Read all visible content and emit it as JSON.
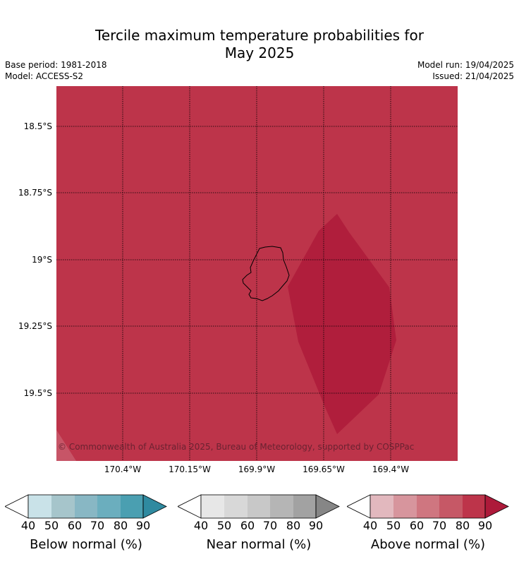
{
  "header": {
    "title_line1": "Tercile maximum temperature probabilities for",
    "title_line2": "May 2025",
    "base_period": "Base period: 1981-2018",
    "model": "Model: ACCESS-S2",
    "model_run": "Model run: 19/04/2025",
    "issued": "Issued: 21/04/2025"
  },
  "map": {
    "copyright": "© Commonwealth of Australia 2025, Bureau of Meteorology, supported by COSPPac",
    "lat_labels": [
      "18.5°S",
      "18.75°S",
      "19°S",
      "19.25°S",
      "19.5°S"
    ],
    "lon_labels": [
      "170.4°W",
      "170.15°W",
      "169.9°W",
      "169.65°W",
      "169.4°W"
    ],
    "fill_colors": {
      "above_80": "#bd344a",
      "above_90": "#b01e3c",
      "above_70": "#c75567"
    },
    "island_name": ""
  },
  "legends": [
    {
      "title": "Below normal (%)",
      "ticks": [
        "40",
        "50",
        "60",
        "70",
        "80",
        "90"
      ],
      "colors": [
        "#c9e2e8",
        "#a6c5cb",
        "#88b7c4",
        "#6baebe",
        "#4a9fb1",
        "#2f8aa0"
      ]
    },
    {
      "title": "Near normal (%)",
      "ticks": [
        "40",
        "50",
        "60",
        "70",
        "80",
        "90"
      ],
      "colors": [
        "#e7e7e7",
        "#d8d8d8",
        "#c8c8c8",
        "#b5b5b5",
        "#a2a2a2",
        "#868686"
      ]
    },
    {
      "title": "Above normal (%)",
      "ticks": [
        "40",
        "50",
        "60",
        "70",
        "80",
        "90"
      ],
      "colors": [
        "#e2b8be",
        "#d7959d",
        "#cf7680",
        "#c65866",
        "#bd344a",
        "#ad1a3a"
      ]
    }
  ]
}
